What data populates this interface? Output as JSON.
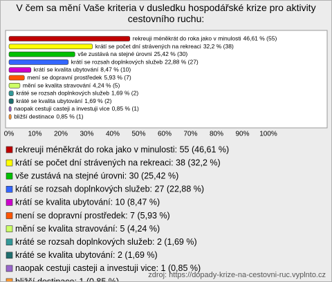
{
  "chart_data": {
    "type": "bar",
    "orientation": "horizontal",
    "title": "V čem sa mění Vaše kriteria v dusledku hospodářské krize pro aktivity cestovního ruchu:",
    "categories": [
      "rekreuji méněkrát do roka jako v minulosti",
      "krátí se počet dní strávených na rekreaci",
      "vše zustává na stejné úrovni",
      "krátí se rozsah doplnkových služeb",
      "krátí se kvalita ubytování",
      "mení se dopravní prostředek",
      "mění se kvalita stravování",
      "kráté se rozsah doplnkových služeb",
      "kráté se kvalita ubytování",
      "naopak cestuji casteji a investuji vice",
      "bližší destinace"
    ],
    "values": [
      46.61,
      32.2,
      25.42,
      22.88,
      8.47,
      5.93,
      4.24,
      1.69,
      1.69,
      0.85,
      0.85
    ],
    "value_labels": [
      "46,61 % (55)",
      "32,2 % (38)",
      "25,42 % (30)",
      "22,88 % (27)",
      "8,47 % (10)",
      "5,93 % (7)",
      "4,24 % (5)",
      "1,69 % (2)",
      "1,69 % (2)",
      "0,85 % (1)",
      "0,85 % (1)"
    ],
    "colors": [
      "#c00000",
      "#ffff00",
      "#00c000",
      "#3366ff",
      "#cc00cc",
      "#ff5500",
      "#ccff66",
      "#339999",
      "#1f6f6f",
      "#9966cc",
      "#ff9933"
    ],
    "legend_labels": [
      "rekreuji méněkrát do roka jako v minulosti: 55 (46,61 %)",
      "krátí se počet dní strávených na rekreaci: 38 (32,2 %)",
      "vše zustává na stejné úrovni: 30 (25,42 %)",
      "krátí se rozsah doplnkových služeb: 27 (22,88 %)",
      "krátí se kvalita ubytování: 10 (8,47 %)",
      "mení se dopravní prostředek: 7 (5,93 %)",
      "mění se kvalita stravování: 5 (4,24 %)",
      "kráté se rozsah doplnkových služeb: 2 (1,69 %)",
      "kráté se kvalita ubytování: 2 (1,69 %)",
      "naopak cestuji casteji a investuji vice: 1 (0,85 %)",
      "bližší destinace: 1 (0,85 %)"
    ],
    "xlim": [
      0,
      100
    ],
    "xticks": [
      {
        "value": 0,
        "label": "0%"
      },
      {
        "value": 10,
        "label": "10%"
      },
      {
        "value": 20,
        "label": "20%"
      },
      {
        "value": 30,
        "label": "30%"
      },
      {
        "value": 40,
        "label": "40%"
      },
      {
        "value": 50,
        "label": "50%"
      },
      {
        "value": 60,
        "label": "60%"
      },
      {
        "value": 70,
        "label": "70%"
      },
      {
        "value": 80,
        "label": "80%"
      },
      {
        "value": 90,
        "label": "90%"
      },
      {
        "value": 100,
        "label": "100%"
      }
    ],
    "source": "zdroj: https://dopady-krize-na-cestovni-ruc.vyplnto.cz"
  }
}
